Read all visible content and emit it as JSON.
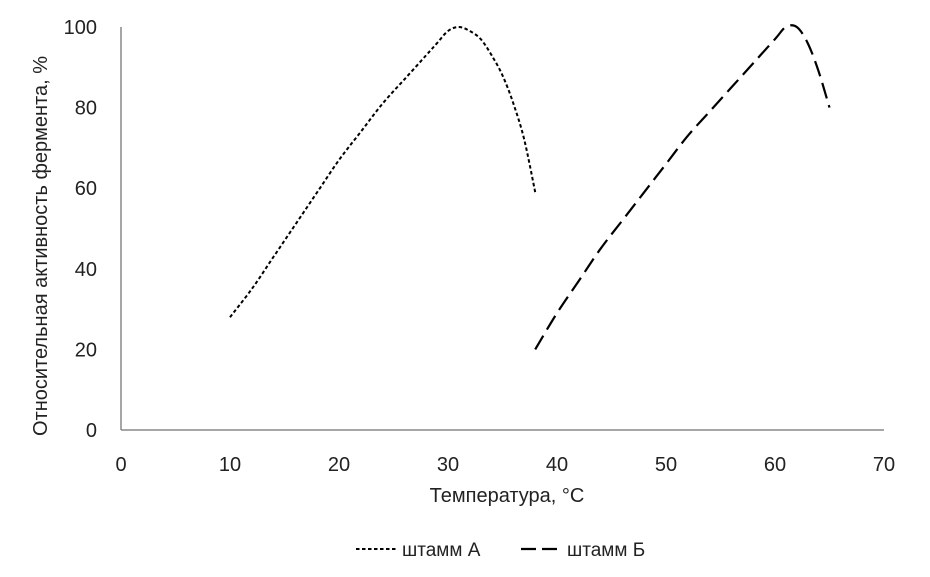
{
  "chart_data": {
    "type": "line",
    "title": "",
    "xlabel": "Температура, °C",
    "ylabel": "Относительная активность фермента, %",
    "xlim": [
      0,
      70
    ],
    "ylim": [
      0,
      100
    ],
    "xticks": [
      0,
      10,
      20,
      30,
      40,
      50,
      60,
      70
    ],
    "yticks": [
      0,
      20,
      40,
      60,
      80,
      100
    ],
    "grid": false,
    "legend_position": "bottom",
    "series": [
      {
        "name": "штамм А",
        "style": "dotted",
        "color": "#000000",
        "x": [
          10,
          12,
          14,
          16,
          18,
          20,
          22,
          24,
          26,
          28,
          29,
          30,
          31,
          32,
          33,
          34,
          35,
          36,
          37,
          38
        ],
        "y": [
          28,
          35,
          43,
          51,
          59,
          67,
          74,
          81,
          87,
          93,
          96,
          99,
          100,
          99,
          97,
          93,
          88,
          81,
          72,
          59
        ]
      },
      {
        "name": "штамм Б",
        "style": "dashed",
        "color": "#000000",
        "x": [
          38,
          40,
          42,
          44,
          46,
          48,
          50,
          52,
          54,
          56,
          58,
          60,
          61,
          62,
          63,
          64,
          65
        ],
        "y": [
          20,
          29,
          37,
          45,
          52,
          59,
          66,
          73,
          79,
          85,
          91,
          97,
          100,
          100,
          96,
          89,
          80
        ]
      }
    ]
  }
}
